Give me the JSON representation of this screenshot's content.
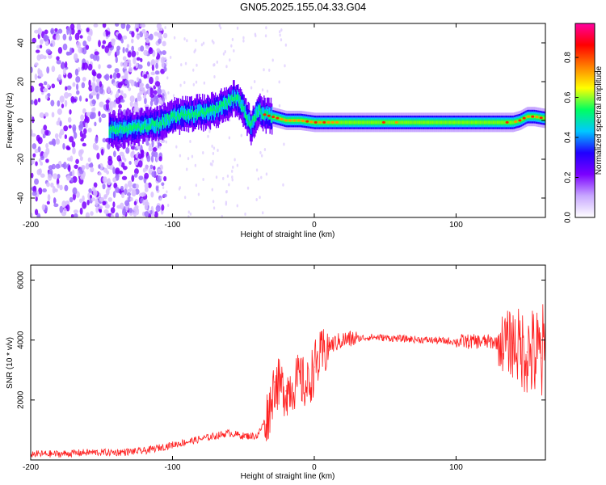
{
  "title": "GN05.2025.155.04.33.G04",
  "chart_data": [
    {
      "type": "heatmap",
      "xlabel": "Height of straight line (km)",
      "ylabel": "Frequency (Hz)",
      "xlim": [
        -200,
        163
      ],
      "ylim": [
        -50,
        50
      ],
      "x_ticks": [
        -200,
        -100,
        0,
        100
      ],
      "y_ticks": [
        -40,
        -20,
        0,
        20,
        40
      ],
      "colorbar": {
        "label": "Normalized spectral amplitude",
        "range": [
          0,
          0.97
        ],
        "ticks": [
          0,
          0.2,
          0.4,
          0.6,
          0.8
        ],
        "colors": [
          "#ffffff",
          "#c8a8ff",
          "#7b00ff",
          "#2000ff",
          "#00c8ff",
          "#00ff60",
          "#ffff00",
          "#ff8000",
          "#ff0000",
          "#ff00a0"
        ]
      },
      "ridge": {
        "x": [
          -140,
          -130,
          -120,
          -110,
          -100,
          -90,
          -80,
          -70,
          -60,
          -55,
          -50,
          -45,
          -40,
          -35,
          -30,
          -20,
          -10,
          0,
          10,
          20,
          40,
          60,
          80,
          100,
          120,
          140,
          145,
          150,
          155,
          163
        ],
        "y": [
          -5,
          -4,
          -3,
          -2,
          2,
          3,
          4,
          5,
          10,
          12,
          6,
          -3,
          5,
          3,
          2,
          0,
          0,
          -1,
          -1,
          -1,
          -1,
          -1,
          -1,
          -1,
          -1,
          -1,
          0,
          2,
          2,
          1
        ]
      }
    },
    {
      "type": "line",
      "xlabel": "Height of straight line (km)",
      "ylabel": "SNR (10 * v/v)",
      "xlim": [
        -200,
        163
      ],
      "ylim": [
        0,
        6500
      ],
      "x_ticks": [
        -200,
        -100,
        0,
        100
      ],
      "y_ticks": [
        2000,
        4000,
        6000
      ],
      "color": "#ff2020",
      "x": [
        -200,
        -180,
        -160,
        -140,
        -120,
        -100,
        -90,
        -80,
        -70,
        -60,
        -50,
        -40,
        -32,
        -28,
        -20,
        -10,
        -5,
        0,
        10,
        20,
        30,
        40,
        60,
        80,
        100,
        120,
        140,
        150,
        160,
        163
      ],
      "values": [
        200,
        200,
        250,
        250,
        300,
        500,
        600,
        700,
        800,
        900,
        800,
        800,
        1600,
        2600,
        2300,
        2700,
        2400,
        3100,
        3800,
        4000,
        4050,
        4100,
        4050,
        4000,
        3950,
        3950,
        3900,
        3600,
        3400,
        3500
      ]
    }
  ]
}
